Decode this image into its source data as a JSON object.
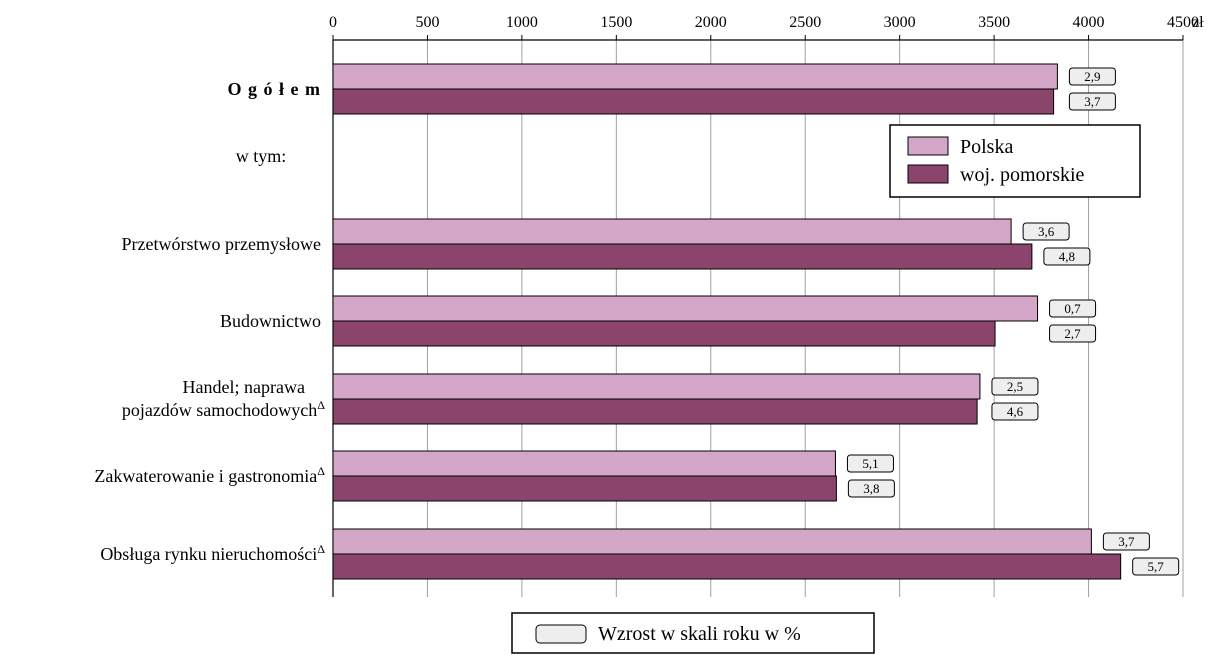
{
  "chart_data": {
    "type": "bar",
    "orientation": "horizontal",
    "x_unit": "zł",
    "xlim": [
      0,
      4500
    ],
    "x_ticks": [
      0,
      500,
      1000,
      1500,
      2000,
      2500,
      3000,
      3500,
      4000,
      4500
    ],
    "x_axis_position": "top",
    "grid": true,
    "legend_position": "top-right",
    "categories": [
      {
        "label": "O g ó ł e m",
        "bold": true
      },
      {
        "label": "w tym:",
        "is_header": true
      },
      {
        "label": "Przetwórstwo przemysłowe"
      },
      {
        "label": "Budownictwo"
      },
      {
        "label": "Handel; naprawa",
        "label_line2": "pojazdów samochodowych",
        "superscript": "Δ"
      },
      {
        "label": "Zakwaterowanie i gastronomia",
        "superscript": "Δ"
      },
      {
        "label": "Obsługa rynku nieruchomości",
        "superscript": "Δ"
      }
    ],
    "series": [
      {
        "name": "Polska",
        "color": "#d4a6c8",
        "values": [
          3835,
          null,
          3590,
          3730,
          3425,
          2660,
          4015
        ],
        "growth_labels": [
          "2,9",
          null,
          "3,6",
          "0,7",
          "2,5",
          "5,1",
          "3,7"
        ]
      },
      {
        "name": "woj. pomorskie",
        "color": "#8b446b",
        "values": [
          3815,
          null,
          3700,
          3505,
          3410,
          2665,
          4170
        ],
        "growth_labels": [
          "3,7",
          null,
          "4,8",
          "2,7",
          "4,6",
          "3,8",
          "5,7"
        ]
      }
    ],
    "growth_label_box_color": "#eeeeee",
    "bottom_legend": "Wzrost w skali roku w %"
  }
}
